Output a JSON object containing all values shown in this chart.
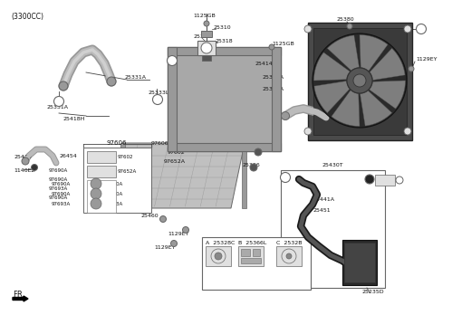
{
  "bg_color": "#ffffff",
  "line_color": "#444444",
  "text_color": "#111111",
  "gray_dark": "#666666",
  "gray_mid": "#999999",
  "gray_light": "#bbbbbb",
  "gray_very_light": "#e0e0e0",
  "dark": "#333333",
  "black": "#000000",
  "labels": {
    "title": "(3300CC)",
    "fr": "FR.",
    "bolt_top": "1125GB",
    "cap_label": "25310",
    "reservoir": "25330",
    "inlet": "25318",
    "hose1": "25331A",
    "hose1b": "25331A",
    "hose_assembly": "25418H",
    "connector_l": "25333L",
    "bolt2": "1125GB",
    "rad_right1": "25414H",
    "rad_right2": "25331A",
    "rad_right3": "25331A",
    "rad_bolt1": "25318",
    "rad_bolt2": "25336",
    "fan_top": "25380",
    "fan_bolt": "1129EY",
    "ac_box": "97606",
    "ac_1": "97602",
    "ac_2": "97652A",
    "ac_3": "97690A",
    "ac_4": "97690A",
    "ac_5": "97693A",
    "ac_6": "97690A",
    "left1": "25470",
    "left2": "26454",
    "left3": "1140EZ",
    "cond_bolt1": "25460",
    "cond_bolt2": "1129EY",
    "cond_bolt3": "1129EY",
    "pipe_box": "25430T",
    "pipe1": "25441A",
    "pipe2": "25451",
    "pipe_end": "25235D",
    "leg_a": "A",
    "leg_a_num": "25328C",
    "leg_b": "B",
    "leg_b_num": "25366L",
    "leg_c": "C",
    "leg_c_num": "2532B"
  }
}
